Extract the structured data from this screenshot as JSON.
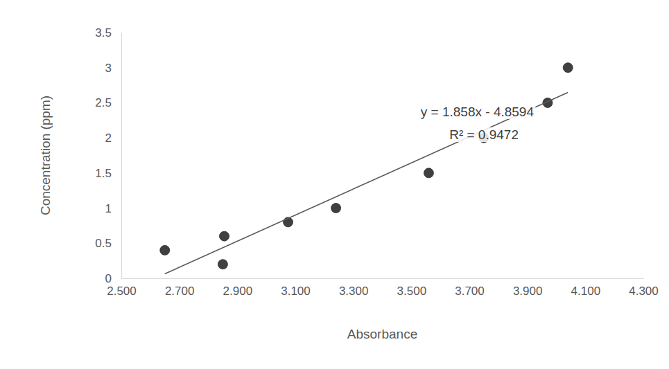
{
  "chart_data": {
    "type": "scatter",
    "x_label": "Absorbance",
    "y_label": "Concentration (ppm)",
    "xlim": [
      2.5,
      4.3
    ],
    "ylim": [
      0,
      3.5
    ],
    "xticks": [
      {
        "value": 2.5,
        "label": "2.500"
      },
      {
        "value": 2.7,
        "label": "2.700"
      },
      {
        "value": 2.9,
        "label": "2.900"
      },
      {
        "value": 3.1,
        "label": "3.100"
      },
      {
        "value": 3.3,
        "label": "3.300"
      },
      {
        "value": 3.5,
        "label": "3.500"
      },
      {
        "value": 3.7,
        "label": "3.700"
      },
      {
        "value": 3.9,
        "label": "3.900"
      },
      {
        "value": 4.1,
        "label": "4.100"
      },
      {
        "value": 4.3,
        "label": "4.300"
      }
    ],
    "yticks": [
      0,
      0.5,
      1,
      1.5,
      2,
      2.5,
      3,
      3.5
    ],
    "grid": false,
    "series": [
      {
        "type": "scatter",
        "color": "#404040",
        "marker": "circle",
        "x": [
          2.65,
          2.855,
          2.85,
          3.075,
          3.24,
          3.56,
          3.75,
          3.97,
          4.04
        ],
        "values": [
          0.4,
          0.6,
          0.2,
          0.8,
          1.0,
          1.5,
          2.0,
          2.5,
          3.0
        ]
      },
      {
        "type": "line",
        "color": "#595959",
        "line_style": "solid",
        "x": [
          2.65,
          4.04
        ],
        "values": [
          0.064,
          2.647
        ]
      }
    ],
    "annotations": [
      "y = 1.858x - 4.8594",
      "R² = 0.9472"
    ]
  }
}
